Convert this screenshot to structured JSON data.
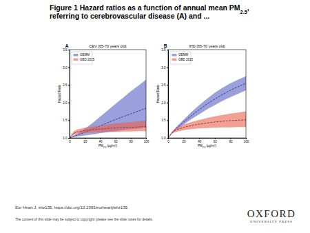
{
  "slide": {
    "title": [
      "Figure 1 Hazard ratios as a function of annual mean PM2.5,",
      "referring to cerebrovascular disease (A) and ..."
    ],
    "citation": "Eur Heart J, ehz135, https://doi.org/10.1093/eurheartj/ehz135",
    "notice": "The content of this slide may be subject to copyright: please see the slide notes for details.",
    "publisher": [
      "OXFORD",
      "UNIVERSITY PRESS"
    ]
  },
  "chart_data": [
    {
      "type": "line",
      "annotation": "A",
      "title": "CEV (65-70 years old)",
      "x_label": "PM2.5 (μg/m³)",
      "y_label": "Hazard Ratio",
      "x": [
        0,
        5,
        10,
        20,
        30,
        40,
        50,
        60,
        70,
        80,
        90,
        100
      ],
      "series": [
        {
          "name": "GEMM",
          "color": "#5860c6",
          "line_style": "dashed",
          "values": [
            1.0,
            1.04,
            1.08,
            1.16,
            1.25,
            1.34,
            1.43,
            1.52,
            1.6,
            1.68,
            1.76,
            1.84
          ],
          "lower": [
            1.0,
            1.02,
            1.04,
            1.07,
            1.1,
            1.13,
            1.16,
            1.19,
            1.22,
            1.25,
            1.27,
            1.3
          ],
          "upper": [
            1.0,
            1.06,
            1.12,
            1.26,
            1.42,
            1.6,
            1.78,
            1.96,
            2.14,
            2.32,
            2.48,
            2.65
          ]
        },
        {
          "name": "GBD 2015",
          "color": "#e8604c",
          "line_style": "dashed",
          "values": [
            1.0,
            1.12,
            1.17,
            1.21,
            1.23,
            1.25,
            1.27,
            1.28,
            1.29,
            1.3,
            1.31,
            1.32
          ],
          "lower": [
            1.0,
            1.08,
            1.12,
            1.14,
            1.15,
            1.16,
            1.17,
            1.17,
            1.18,
            1.18,
            1.19,
            1.19
          ],
          "upper": [
            1.0,
            1.18,
            1.24,
            1.29,
            1.32,
            1.35,
            1.38,
            1.41,
            1.43,
            1.45,
            1.47,
            1.5
          ]
        }
      ],
      "xlim": [
        0,
        100
      ],
      "xticks": [
        0,
        20,
        40,
        60,
        80,
        100
      ],
      "ylim": [
        1.0,
        3.5
      ],
      "yticks": [
        {
          "value": 1.0,
          "label": "1.0"
        },
        {
          "value": 1.5,
          "label": "1.5"
        },
        {
          "value": 2.0,
          "label": "2.0"
        },
        {
          "value": 2.5,
          "label": "2.5"
        },
        {
          "value": 3.0,
          "label": "3.0"
        },
        {
          "value": 3.5,
          "label": "3.5"
        }
      ],
      "legend": "upper left"
    },
    {
      "type": "line",
      "annotation": "B",
      "title": "IHD (65-70 years old)",
      "x_label": "PM2.5 (μg/m³)",
      "y_label": "Hazard Ratio",
      "x": [
        0,
        5,
        10,
        20,
        30,
        40,
        50,
        60,
        70,
        80,
        90,
        100
      ],
      "series": [
        {
          "name": "GEMM",
          "color": "#5860c6",
          "line_style": "dashed",
          "values": [
            1.0,
            1.14,
            1.26,
            1.45,
            1.63,
            1.8,
            1.96,
            2.1,
            2.23,
            2.35,
            2.45,
            2.55
          ],
          "lower": [
            1.0,
            1.12,
            1.22,
            1.38,
            1.53,
            1.67,
            1.81,
            1.93,
            2.05,
            2.15,
            2.25,
            2.35
          ],
          "upper": [
            1.0,
            1.16,
            1.3,
            1.52,
            1.73,
            1.93,
            2.11,
            2.28,
            2.42,
            2.55,
            2.65,
            2.75
          ]
        },
        {
          "name": "GBD 2015",
          "color": "#e8604c",
          "line_style": "dashed",
          "values": [
            1.0,
            1.15,
            1.22,
            1.3,
            1.35,
            1.39,
            1.42,
            1.45,
            1.47,
            1.49,
            1.5,
            1.51
          ],
          "lower": [
            1.0,
            1.12,
            1.17,
            1.22,
            1.25,
            1.27,
            1.28,
            1.29,
            1.3,
            1.3,
            1.31,
            1.31
          ],
          "upper": [
            1.0,
            1.18,
            1.27,
            1.38,
            1.45,
            1.51,
            1.56,
            1.61,
            1.65,
            1.69,
            1.72,
            1.75
          ]
        }
      ],
      "xlim": [
        0,
        100
      ],
      "xticks": [
        0,
        20,
        40,
        60,
        80,
        100
      ],
      "ylim": [
        1.0,
        3.5
      ],
      "yticks": [
        {
          "value": 1.0,
          "label": "1.0"
        },
        {
          "value": 1.5,
          "label": "1.5"
        },
        {
          "value": 2.0,
          "label": "2.0"
        },
        {
          "value": 2.5,
          "label": "2.5"
        },
        {
          "value": 3.0,
          "label": "3.0"
        },
        {
          "value": 3.5,
          "label": "3.5"
        }
      ],
      "legend": "upper left"
    }
  ]
}
